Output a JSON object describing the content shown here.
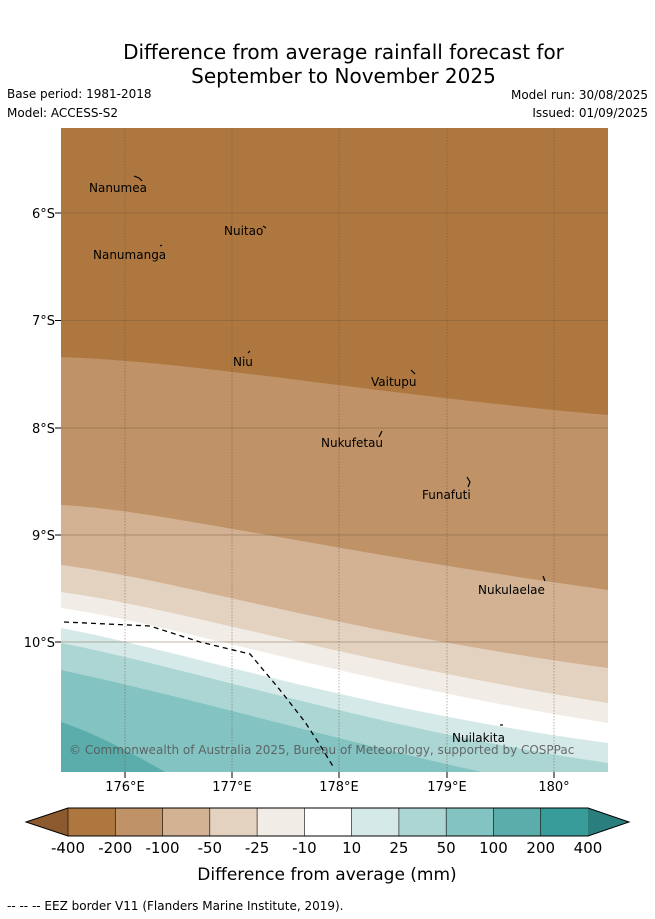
{
  "title_line1": "Difference from average rainfall forecast for",
  "title_line2": "September to November 2025",
  "meta": {
    "base_period": "Base period: 1981-2018",
    "model": "Model: ACCESS-S2",
    "model_run": "Model run: 30/08/2025",
    "issued": "Issued: 01/09/2025"
  },
  "lat_ticks": [
    "6°S",
    "7°S",
    "8°S",
    "9°S",
    "10°S"
  ],
  "lon_ticks": [
    "176°E",
    "177°E",
    "178°E",
    "179°E",
    "180°"
  ],
  "islands": [
    "Nanumea",
    "Nuitao",
    "Nanumanga",
    "Niu",
    "Vaitupu",
    "Nukufetau",
    "Funafuti",
    "Nukulaelae",
    "Nuilakita"
  ],
  "copyright": "© Commonwealth of Australia 2025, Bureau of Meteorology, supported by COSPPac",
  "colorbar": {
    "labels": [
      "-400",
      "-200",
      "-100",
      "-50",
      "-25",
      "-10",
      "10",
      "25",
      "50",
      "100",
      "200",
      "400"
    ],
    "colors": [
      "#8c5a2e",
      "#ad773f",
      "#c09268",
      "#d2b292",
      "#e3d2c0",
      "#f1ece6",
      "#ffffff",
      "#d5e9e8",
      "#acd6d4",
      "#83c3c1",
      "#5aadab",
      "#379c9a",
      "#2a7f7e"
    ],
    "label": "Difference from average (mm)"
  },
  "footer": "--  --  -- EEZ border V11 (Flanders Marine Institute, 2019)."
}
